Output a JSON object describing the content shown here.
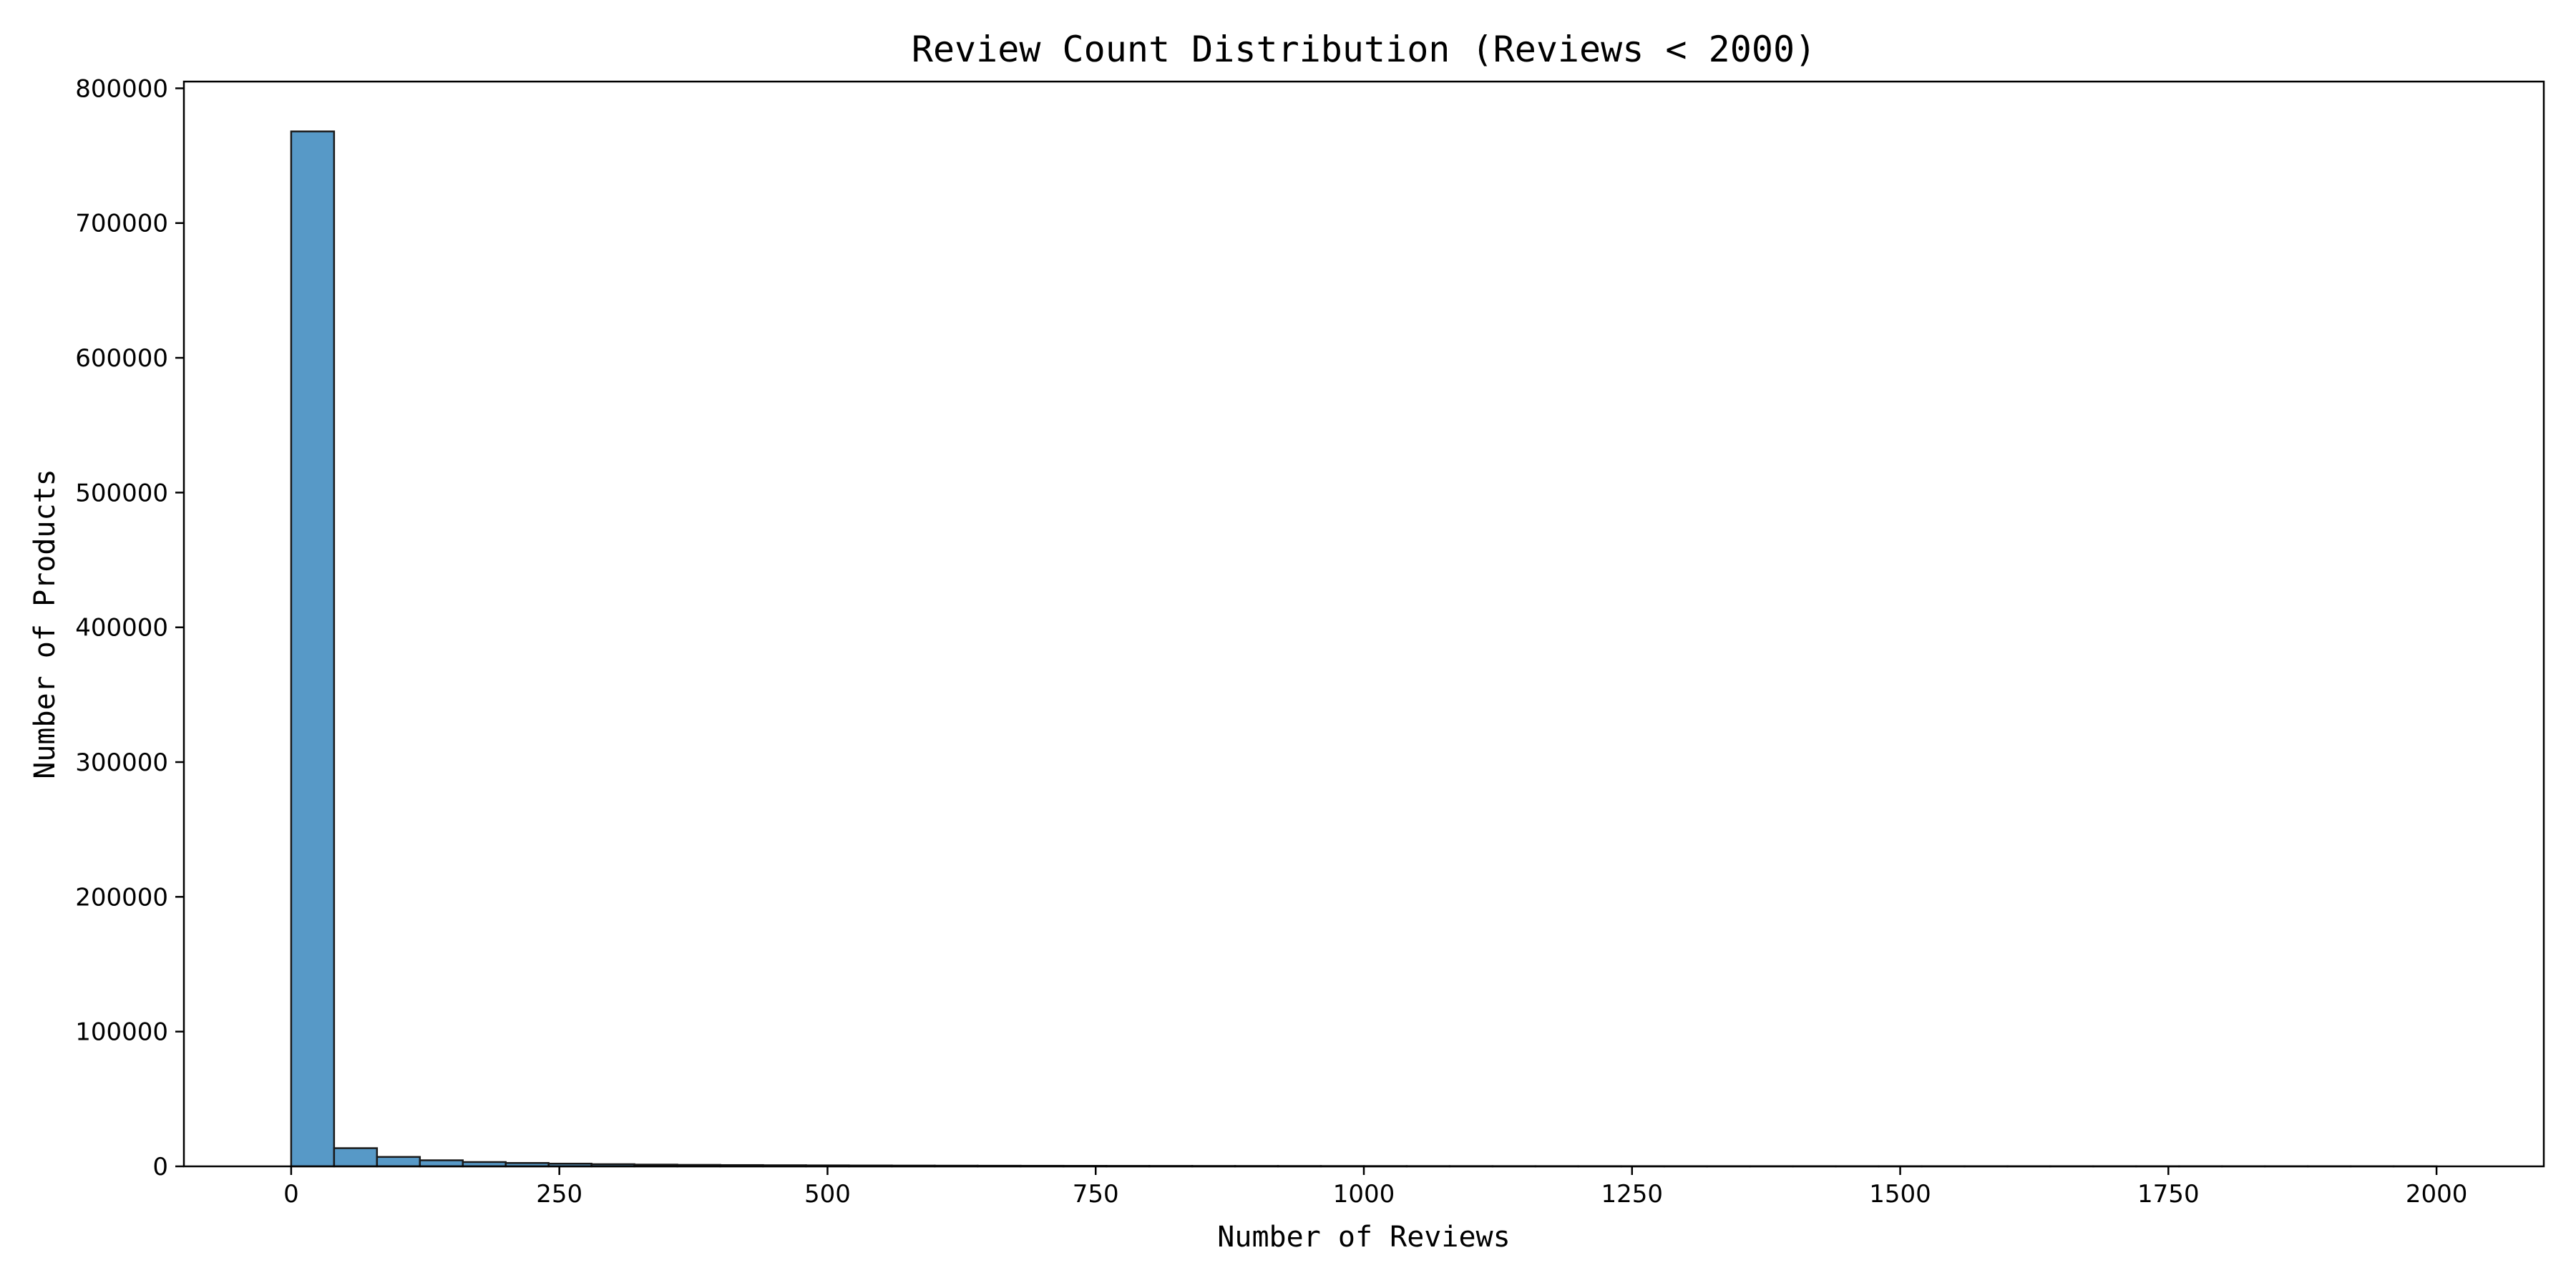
{
  "chart_data": {
    "type": "bar",
    "title": "Review Count Distribution (Reviews < 2000)",
    "xlabel": "Number of Reviews",
    "ylabel": "Number of Products",
    "xlim": [
      -100,
      2100
    ],
    "ylim": [
      0,
      805000
    ],
    "x_ticks": [
      0,
      250,
      500,
      750,
      1000,
      1250,
      1500,
      1750,
      2000
    ],
    "y_ticks": [
      0,
      100000,
      200000,
      300000,
      400000,
      500000,
      600000,
      700000,
      800000
    ],
    "grid": false,
    "legend": "none",
    "bar_color": "#5799c7",
    "bin_edges": [
      0,
      40,
      80,
      120,
      160,
      200,
      240,
      280,
      320,
      360,
      400,
      440,
      480,
      520,
      560,
      600,
      640,
      680,
      720,
      760,
      800,
      840,
      880,
      920,
      960,
      1000,
      1040,
      1080,
      1120,
      1160,
      1200,
      1240,
      1280,
      1320,
      1360,
      1400,
      1440,
      1480,
      1520,
      1560,
      1600,
      1640,
      1680,
      1720,
      1760,
      1800,
      1840,
      1880,
      1920,
      1960,
      2000
    ],
    "values": [
      768000,
      13500,
      7000,
      4500,
      3200,
      2500,
      2000,
      1600,
      1300,
      1100,
      950,
      820,
      720,
      640,
      570,
      510,
      460,
      420,
      380,
      350,
      320,
      290,
      270,
      250,
      230,
      210,
      195,
      180,
      170,
      160,
      150,
      140,
      130,
      122,
      115,
      108,
      102,
      96,
      90,
      85,
      80,
      76,
      72,
      68,
      64,
      60,
      57,
      54,
      51,
      48
    ]
  }
}
